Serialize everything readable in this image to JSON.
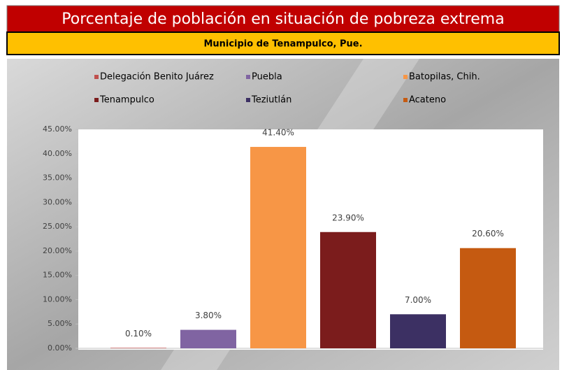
{
  "chart_data": {
    "type": "bar",
    "title": "Porcentaje de población en situación de pobreza extrema",
    "subtitle": "Municipio de Tenampulco, Pue.",
    "categories": [
      "Delegación Benito Juárez",
      "Puebla",
      "Batopilas, Chih.",
      "Tenampulco",
      "Teziutlán",
      "Acateno"
    ],
    "values": [
      0.1,
      3.8,
      41.4,
      23.9,
      7.0,
      20.6
    ],
    "value_labels": [
      "0.10%",
      "3.80%",
      "41.40%",
      "23.90%",
      "7.00%",
      "20.60%"
    ],
    "colors": [
      "#c0504d",
      "#8064a2",
      "#f79646",
      "#7b1c1c",
      "#3c3063",
      "#c55a11"
    ],
    "ylim": [
      0,
      45
    ],
    "yticks": [
      {
        "value": 0,
        "label": "0.00%"
      },
      {
        "value": 5,
        "label": "5.00%"
      },
      {
        "value": 10,
        "label": "10.00%"
      },
      {
        "value": 15,
        "label": "15.00%"
      },
      {
        "value": 20,
        "label": "20.00%"
      },
      {
        "value": 25,
        "label": "25.00%"
      },
      {
        "value": 30,
        "label": "30.00%"
      },
      {
        "value": 35,
        "label": "35.00%"
      },
      {
        "value": 40,
        "label": "40.00%"
      },
      {
        "value": 45,
        "label": "45.00%"
      }
    ],
    "legend": "top"
  }
}
